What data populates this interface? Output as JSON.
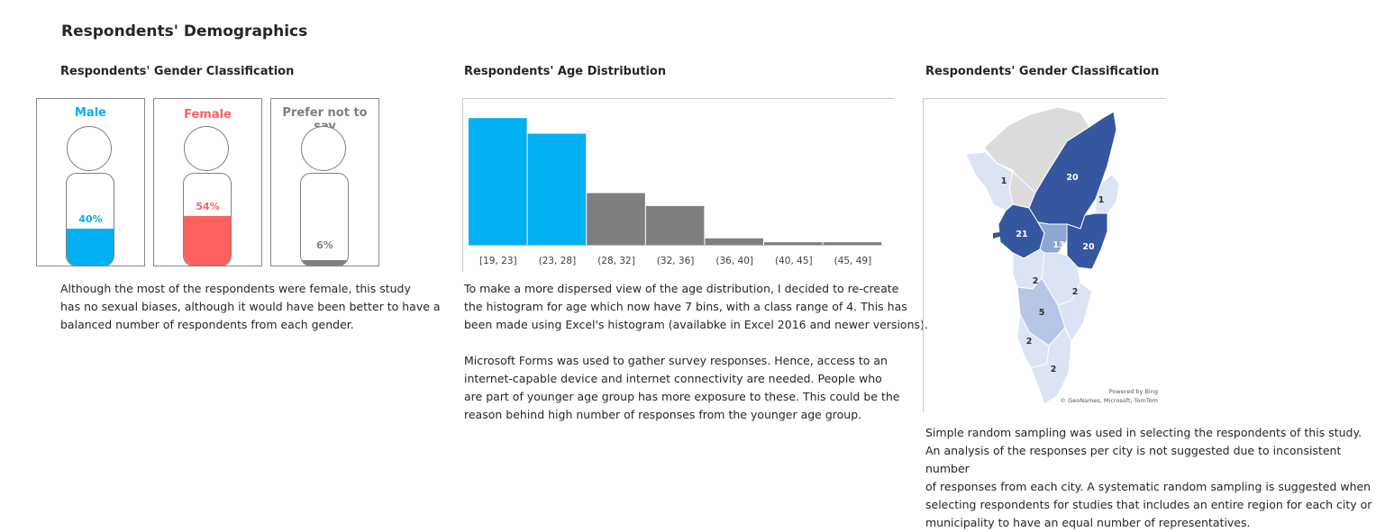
{
  "page_title": "Respondents' Demographics",
  "gender_section": {
    "title": "Respondents' Gender Classification",
    "cards": [
      {
        "label": "Male",
        "percent_label": "40%",
        "fill_fraction": 0.4,
        "color": "#00B0F0"
      },
      {
        "label": "Female",
        "percent_label": "54%",
        "fill_fraction": 0.54,
        "color": "#FF6161"
      },
      {
        "label": "Prefer not to say",
        "percent_label": "6%",
        "fill_fraction": 0.06,
        "color": "#7F7F7F"
      }
    ],
    "note_lines": [
      "Although the most of the respondents were female, this study",
      "has no sexual biases, although it would have been better to have a",
      "balanced number of respondents from each gender."
    ]
  },
  "age_section": {
    "title": "Respondents' Age Distribution",
    "paragraph1_lines": [
      "To make a more dispersed view of the age distribution, I decided to re-create",
      "the histogram for age which now have 7 bins, with a class range of 4. This has",
      "been made using Excel's histogram (availabke in Excel 2016 and newer versions)."
    ],
    "paragraph2_lines": [
      "Microsoft Forms was used to gather survey responses. Hence, access to an",
      "internet-capable device and internet connectivity are needed. People who",
      "are part of younger age group has more exposure to these. This could be the",
      "reason behind high number of responses from the younger age group."
    ]
  },
  "map_section": {
    "title": "Respondents' Gender Classification",
    "attribution_line1": "Powered by Bing",
    "attribution_line2": "© GeoNames, Microsoft, TomTom",
    "region_labels": [
      "20",
      "1",
      "1",
      "21",
      "13",
      "20",
      "2",
      "2",
      "5",
      "2",
      "2"
    ],
    "colors": {
      "high": "#3457A0",
      "mid": "#8FA6D3",
      "low": "#C9D5EC",
      "lowest": "#DCE4F3",
      "none": "#DCDCDC"
    },
    "note_lines": [
      "Simple random sampling was used in selecting the respondents of this study.",
      "An analysis of the responses per city is not suggested due to inconsistent number",
      "of responses from each city. A systematic random sampling is suggested when",
      "selecting respondents for studies that includes an entire region for each city or",
      "municipality to have an equal number of representatives."
    ]
  },
  "chart_data": [
    {
      "type": "bar",
      "title": "Respondents' Age Distribution",
      "categories": [
        "[19, 23]",
        "(23, 28]",
        "(28, 32]",
        "(32, 36]",
        "(36, 40]",
        "(40, 45]",
        "(45, 49]"
      ],
      "values": [
        49,
        43,
        20,
        15,
        2.5,
        1,
        1
      ],
      "ylim": [
        0,
        55
      ],
      "colors": [
        "#00B0F0",
        "#00B0F0",
        "#7F7F7F",
        "#7F7F7F",
        "#7F7F7F",
        "#7F7F7F",
        "#7F7F7F"
      ],
      "grid": false,
      "legend": "none",
      "xlabel": "",
      "ylabel": ""
    }
  ]
}
